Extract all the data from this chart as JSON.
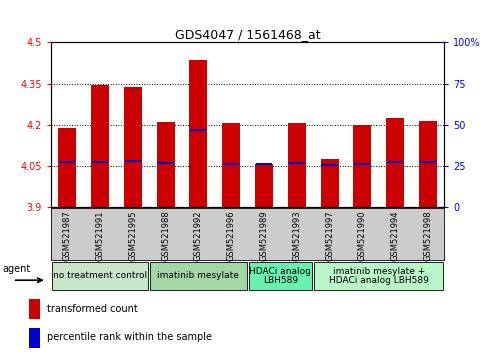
{
  "title": "GDS4047 / 1561468_at",
  "samples": [
    "GSM521987",
    "GSM521991",
    "GSM521995",
    "GSM521988",
    "GSM521992",
    "GSM521996",
    "GSM521989",
    "GSM521993",
    "GSM521997",
    "GSM521990",
    "GSM521994",
    "GSM521998"
  ],
  "red_values": [
    4.19,
    4.345,
    4.338,
    4.21,
    4.435,
    4.205,
    4.057,
    4.205,
    4.075,
    4.2,
    4.225,
    4.215
  ],
  "blue_values": [
    4.065,
    4.065,
    4.068,
    4.062,
    4.182,
    4.058,
    4.057,
    4.062,
    4.052,
    4.058,
    4.065,
    4.063
  ],
  "ymin": 3.9,
  "ymax": 4.5,
  "y_ticks_left": [
    3.9,
    4.05,
    4.2,
    4.35,
    4.5
  ],
  "y_ticks_right_vals": [
    0,
    25,
    50,
    75,
    100
  ],
  "y_ticks_right_labels": [
    "0",
    "25",
    "50",
    "75",
    "100%"
  ],
  "bar_color": "#cc0000",
  "blue_color": "#0000cc",
  "bar_width": 0.55,
  "groups": [
    {
      "label": "no treatment control",
      "start": 0,
      "end": 3,
      "color": "#c8e6c9"
    },
    {
      "label": "imatinib mesylate",
      "start": 3,
      "end": 6,
      "color": "#a5d6a7"
    },
    {
      "label": "HDACi analog\nLBH589",
      "start": 6,
      "end": 8,
      "color": "#69f0ae"
    },
    {
      "label": "imatinib mesylate +\nHDACi analog LBH589",
      "start": 8,
      "end": 12,
      "color": "#b9f6ca"
    }
  ],
  "agent_label": "agent",
  "legend_red": "transformed count",
  "legend_blue": "percentile rank within the sample",
  "sample_bg": "#cccccc",
  "plot_bg": "#ffffff",
  "title_fontsize": 9,
  "tick_fontsize": 7,
  "label_fontsize": 6,
  "group_fontsize": 6.5
}
